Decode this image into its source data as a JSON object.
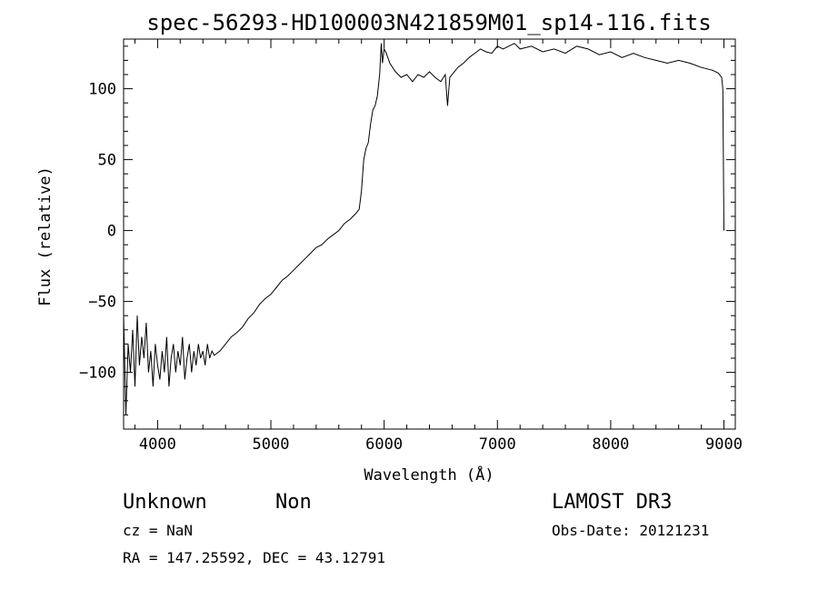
{
  "chart_data": {
    "type": "line",
    "title": "spec-56293-HD100003N421859M01_sp14-116.fits",
    "xlabel": "Wavelength (Å)",
    "ylabel": "Flux (relative)",
    "xlim": [
      3700,
      9100
    ],
    "ylim": [
      -140,
      135
    ],
    "xticks": [
      4000,
      5000,
      6000,
      7000,
      8000,
      9000
    ],
    "yticks": [
      -100,
      -50,
      0,
      50,
      100
    ],
    "grid": false,
    "series": [
      {
        "x": [
          3700,
          3720,
          3740,
          3760,
          3780,
          3800,
          3820,
          3840,
          3860,
          3880,
          3900,
          3920,
          3940,
          3960,
          3980,
          4000,
          4020,
          4040,
          4060,
          4080,
          4100,
          4120,
          4140,
          4160,
          4180,
          4200,
          4220,
          4240,
          4260,
          4280,
          4300,
          4320,
          4340,
          4360,
          4380,
          4400,
          4420,
          4440,
          4460,
          4480,
          4500,
          4550,
          4600,
          4650,
          4700,
          4750,
          4800,
          4850,
          4900,
          4950,
          5000,
          5050,
          5100,
          5150,
          5200,
          5250,
          5300,
          5350,
          5400,
          5450,
          5500,
          5550,
          5600,
          5650,
          5700,
          5750,
          5780,
          5800,
          5820,
          5840,
          5860,
          5880,
          5900,
          5920,
          5940,
          5960,
          5975,
          5985,
          6000,
          6020,
          6050,
          6100,
          6150,
          6200,
          6250,
          6300,
          6350,
          6400,
          6450,
          6500,
          6540,
          6560,
          6580,
          6620,
          6650,
          6700,
          6750,
          6800,
          6850,
          6900,
          6950,
          7000,
          7050,
          7100,
          7150,
          7200,
          7300,
          7400,
          7500,
          7600,
          7700,
          7800,
          7900,
          8000,
          8100,
          8200,
          8300,
          8400,
          8500,
          8600,
          8700,
          8800,
          8900,
          8950,
          8980,
          8990,
          9000
        ],
        "y": [
          -60,
          -130,
          -80,
          -100,
          -70,
          -110,
          -60,
          -95,
          -75,
          -90,
          -65,
          -100,
          -85,
          -110,
          -80,
          -95,
          -105,
          -85,
          -100,
          -75,
          -110,
          -90,
          -80,
          -100,
          -85,
          -95,
          -75,
          -105,
          -90,
          -80,
          -100,
          -85,
          -95,
          -80,
          -90,
          -85,
          -95,
          -80,
          -90,
          -85,
          -88,
          -85,
          -80,
          -75,
          -72,
          -68,
          -62,
          -58,
          -52,
          -48,
          -45,
          -40,
          -35,
          -32,
          -28,
          -24,
          -20,
          -16,
          -12,
          -10,
          -6,
          -3,
          0,
          5,
          8,
          12,
          15,
          28,
          50,
          58,
          62,
          75,
          85,
          88,
          95,
          110,
          132,
          118,
          128,
          125,
          118,
          112,
          108,
          110,
          105,
          110,
          108,
          112,
          108,
          105,
          110,
          88,
          108,
          112,
          115,
          118,
          122,
          125,
          128,
          126,
          125,
          130,
          128,
          130,
          132,
          128,
          130,
          126,
          128,
          125,
          130,
          128,
          124,
          126,
          122,
          125,
          122,
          120,
          118,
          120,
          118,
          115,
          113,
          111,
          108,
          100,
          0
        ]
      }
    ]
  },
  "annotations": {
    "class_label": "Unknown",
    "subclass_label": "Non",
    "survey_label": "LAMOST DR3",
    "cz_text": "cz = NaN",
    "obs_date_text": "Obs-Date: 20121231",
    "coords_text": "RA = 147.25592, DEC =  43.12791"
  }
}
